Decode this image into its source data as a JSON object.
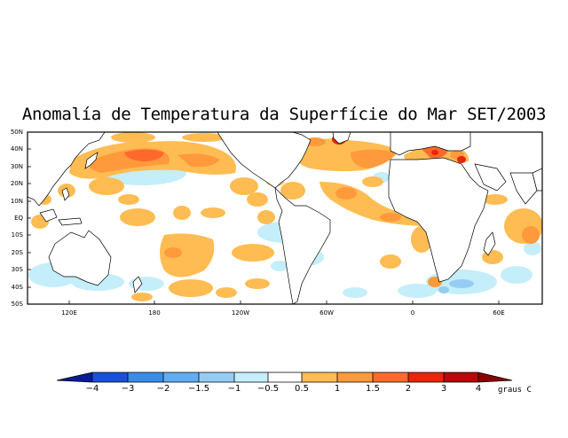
{
  "title": "Anomalía de Temperatura da Superfície do Mar SET/2003",
  "lat_labels": [
    "50N",
    "40N",
    "30N",
    "20N",
    "10N",
    "EQ",
    "10S",
    "20S",
    "30S",
    "40S",
    "50S"
  ],
  "lon_labels": [
    "120E",
    "180",
    "120W",
    "60W",
    "0",
    "60E"
  ],
  "colorbar": {
    "labels": [
      "-4",
      "-3",
      "-2",
      "-1.5",
      "-1",
      "-0.5",
      "0.5",
      "1",
      "1.5",
      "2",
      "3",
      "4"
    ],
    "colors": [
      "#0a1a9c",
      "#1a50d8",
      "#3a8ce8",
      "#64acf0",
      "#96ccf4",
      "#c4eefa",
      "#ffffff",
      "#ffbc52",
      "#ff9a3c",
      "#ff6a2c",
      "#e8240c",
      "#b8080a",
      "#8c0000"
    ],
    "units": "graus C"
  },
  "legend_colors": {
    "land": "#ffffff",
    "coast": "#000000",
    "warm_weak": "#ffbc52",
    "warm_mid": "#ff9a3c",
    "warm_strong": "#ff6a2c",
    "hot": "#e8240c",
    "very_hot": "#b8080a",
    "cool_weak": "#c4eefa",
    "cool_mid": "#96ccf4"
  }
}
